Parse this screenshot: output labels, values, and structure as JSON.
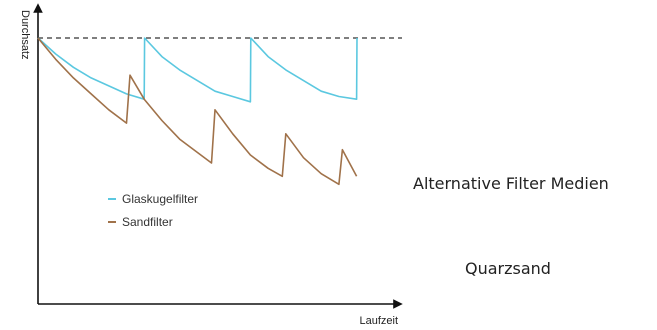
{
  "chart_data": {
    "type": "line",
    "xlabel": "Laufzeit",
    "ylabel": "Durchsatz",
    "reference_line": {
      "style": "dashed",
      "y": 1.0
    },
    "x_range": [
      0,
      10
    ],
    "y_range": [
      0,
      1.1
    ],
    "series": [
      {
        "name": "Glaskugelfilter",
        "color": "#5bc8e0",
        "x": [
          0,
          0.5,
          1.0,
          1.5,
          2.0,
          2.5,
          3.0,
          3.01,
          3.5,
          4.0,
          4.5,
          5.0,
          5.5,
          6.0,
          6.01,
          6.5,
          7.0,
          7.5,
          8.0,
          8.5,
          9.0,
          9.01
        ],
        "y": [
          1.0,
          0.94,
          0.89,
          0.85,
          0.82,
          0.79,
          0.77,
          1.0,
          0.93,
          0.88,
          0.84,
          0.8,
          0.78,
          0.76,
          1.0,
          0.93,
          0.88,
          0.84,
          0.8,
          0.78,
          0.77,
          1.0
        ]
      },
      {
        "name": "Sandfilter",
        "color": "#a0724a",
        "x": [
          0,
          0.5,
          1.0,
          1.5,
          2.0,
          2.5,
          2.6,
          3.0,
          3.5,
          4.0,
          4.5,
          4.9,
          5.0,
          5.5,
          6.0,
          6.5,
          6.9,
          7.0,
          7.5,
          8.0,
          8.5,
          8.6,
          9.0
        ],
        "y": [
          1.0,
          0.92,
          0.85,
          0.79,
          0.73,
          0.68,
          0.86,
          0.77,
          0.69,
          0.62,
          0.57,
          0.53,
          0.73,
          0.64,
          0.56,
          0.51,
          0.48,
          0.64,
          0.55,
          0.49,
          0.45,
          0.58,
          0.48
        ]
      }
    ],
    "legend_position": "center-left",
    "grid": false
  },
  "side_labels": {
    "alternative": "Alternative Filter Medien",
    "quarzsand": "Quarzsand"
  },
  "colors": {
    "axis": "#111111",
    "dashed": "#333333"
  }
}
